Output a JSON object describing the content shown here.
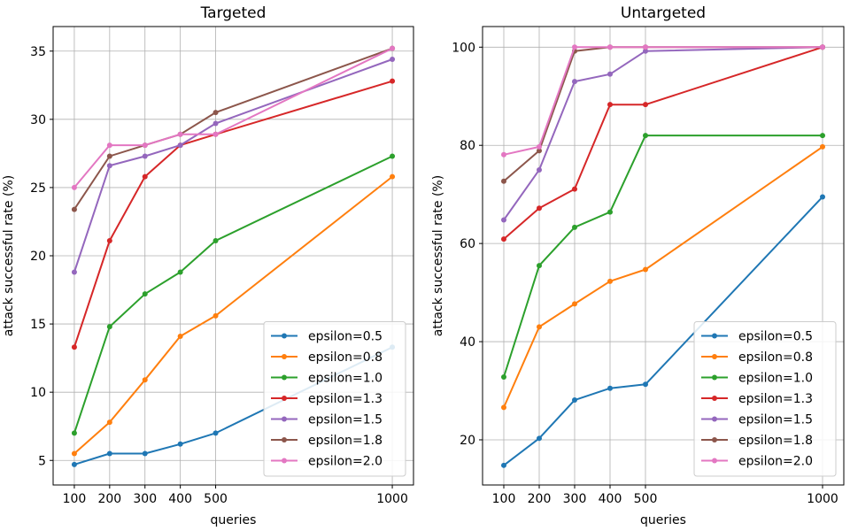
{
  "chart_data": [
    {
      "type": "line",
      "title": "Targeted",
      "xlabel": "queries",
      "ylabel": "attack successful rate (%)",
      "x": [
        100,
        200,
        300,
        400,
        500,
        1000
      ],
      "xticks": [
        100,
        200,
        300,
        400,
        500,
        1000
      ],
      "yticks": [
        5,
        10,
        15,
        20,
        25,
        30,
        35
      ],
      "xlim": [
        40,
        1060
      ],
      "ylim": [
        3.2,
        36.8
      ],
      "grid": true,
      "legend": "lower-right",
      "series": [
        {
          "name": "epsilon=0.5",
          "color": "#1f77b4",
          "values": [
            4.7,
            5.5,
            5.5,
            6.2,
            7.0,
            13.3
          ]
        },
        {
          "name": "epsilon=0.8",
          "color": "#ff7f0e",
          "values": [
            5.5,
            7.8,
            10.9,
            14.1,
            15.6,
            25.8
          ]
        },
        {
          "name": "epsilon=1.0",
          "color": "#2ca02c",
          "values": [
            7.0,
            14.8,
            17.2,
            18.8,
            21.1,
            27.3
          ]
        },
        {
          "name": "epsilon=1.3",
          "color": "#d62728",
          "values": [
            13.3,
            21.1,
            25.8,
            28.1,
            28.9,
            32.8
          ]
        },
        {
          "name": "epsilon=1.5",
          "color": "#9467bd",
          "values": [
            18.8,
            26.6,
            27.3,
            28.1,
            29.7,
            34.4
          ]
        },
        {
          "name": "epsilon=1.8",
          "color": "#8c564b",
          "values": [
            23.4,
            27.3,
            28.1,
            28.9,
            30.5,
            35.2
          ]
        },
        {
          "name": "epsilon=2.0",
          "color": "#e377c2",
          "values": [
            25.0,
            28.1,
            28.1,
            28.9,
            28.9,
            35.2
          ]
        }
      ]
    },
    {
      "type": "line",
      "title": "Untargeted",
      "xlabel": "queries",
      "ylabel": "attack successful rate (%)",
      "x": [
        100,
        200,
        300,
        400,
        500,
        1000
      ],
      "xticks": [
        100,
        200,
        300,
        400,
        500,
        1000
      ],
      "yticks": [
        20,
        40,
        60,
        80,
        100
      ],
      "xlim": [
        40,
        1060
      ],
      "ylim": [
        10.8,
        104.2
      ],
      "grid": true,
      "legend": "lower-right",
      "series": [
        {
          "name": "epsilon=0.5",
          "color": "#1f77b4",
          "values": [
            14.8,
            20.3,
            28.1,
            30.5,
            31.3,
            69.5
          ]
        },
        {
          "name": "epsilon=0.8",
          "color": "#ff7f0e",
          "values": [
            26.6,
            43.0,
            47.7,
            52.3,
            54.7,
            79.7
          ]
        },
        {
          "name": "epsilon=1.0",
          "color": "#2ca02c",
          "values": [
            32.8,
            55.5,
            63.3,
            66.4,
            82.0,
            82.0
          ]
        },
        {
          "name": "epsilon=1.3",
          "color": "#d62728",
          "values": [
            60.9,
            67.2,
            71.1,
            88.3,
            88.3,
            100.0
          ]
        },
        {
          "name": "epsilon=1.5",
          "color": "#9467bd",
          "values": [
            64.8,
            75.0,
            93.0,
            94.5,
            99.2,
            100.0
          ]
        },
        {
          "name": "epsilon=1.8",
          "color": "#8c564b",
          "values": [
            72.7,
            78.9,
            99.2,
            100.0,
            100.0,
            100.0
          ]
        },
        {
          "name": "epsilon=2.0",
          "color": "#e377c2",
          "values": [
            78.1,
            79.7,
            100.0,
            100.0,
            100.0,
            100.0
          ]
        }
      ]
    }
  ]
}
